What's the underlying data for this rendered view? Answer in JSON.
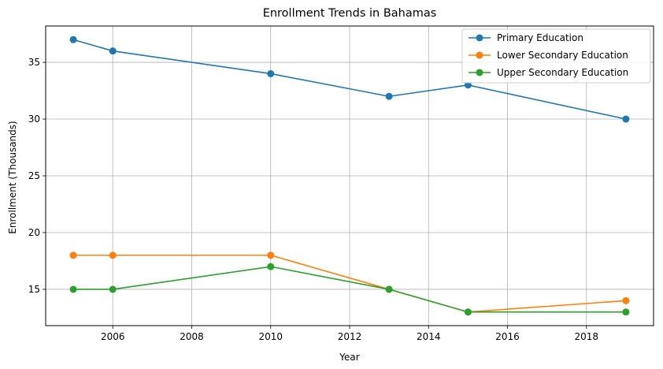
{
  "chart_data": {
    "type": "line",
    "title": "Enrollment Trends in Bahamas",
    "xlabel": "Year",
    "ylabel": "Enrollment (Thousands)",
    "xlim": [
      2004.3,
      2019.7
    ],
    "ylim": [
      11.8,
      38.2
    ],
    "x_ticks": [
      2006,
      2008,
      2010,
      2012,
      2014,
      2016,
      2018
    ],
    "y_ticks": [
      15,
      20,
      25,
      30,
      35
    ],
    "grid": true,
    "legend_position": "top-right",
    "x": [
      2005,
      2006,
      2010,
      2013,
      2015,
      2019
    ],
    "series": [
      {
        "name": "Primary Education",
        "color": "#1f77b4",
        "values": [
          37,
          36,
          34,
          32,
          33,
          30
        ]
      },
      {
        "name": "Lower Secondary Education",
        "color": "#ff7f0e",
        "values": [
          18,
          18,
          18,
          15,
          13,
          14
        ]
      },
      {
        "name": "Upper Secondary Education",
        "color": "#2ca02c",
        "values": [
          15,
          15,
          17,
          15,
          13,
          13
        ]
      }
    ]
  }
}
